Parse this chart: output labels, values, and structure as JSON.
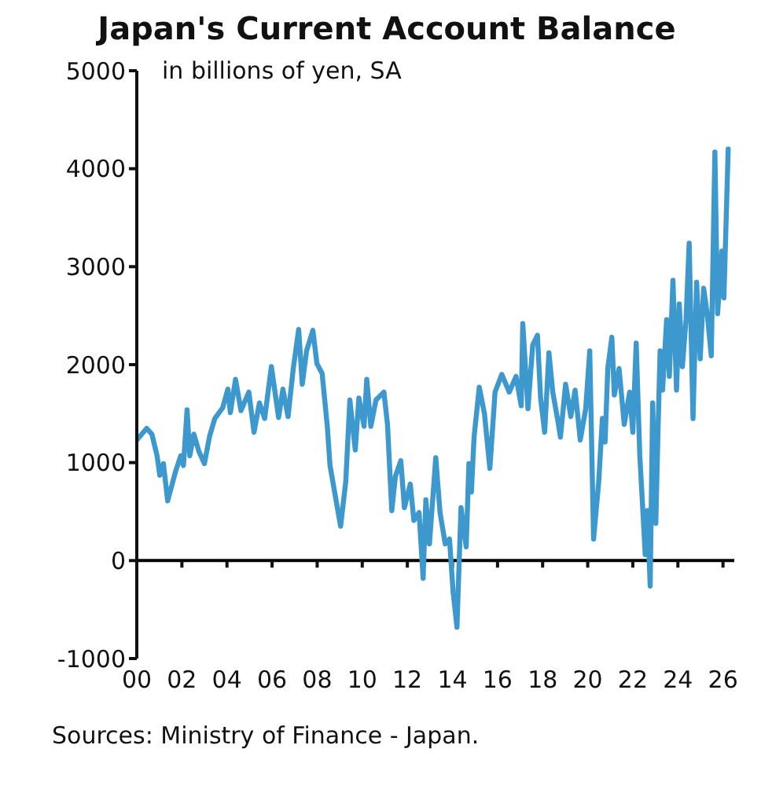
{
  "chart_data": {
    "type": "line",
    "title": "Japan's Current Account Balance",
    "ylabel": "in billions of yen, SA",
    "annotations": [
      "Sources: Ministry of Finance - Japan."
    ],
    "xlim": [
      2000,
      2026.5
    ],
    "xticks": [
      {
        "value": 2000,
        "label": "00"
      },
      {
        "value": 2002,
        "label": "02"
      },
      {
        "value": 2004,
        "label": "04"
      },
      {
        "value": 2006,
        "label": "06"
      },
      {
        "value": 2008,
        "label": "08"
      },
      {
        "value": 2010,
        "label": "10"
      },
      {
        "value": 2012,
        "label": "12"
      },
      {
        "value": 2014,
        "label": "14"
      },
      {
        "value": 2016,
        "label": "16"
      },
      {
        "value": 2018,
        "label": "18"
      },
      {
        "value": 2020,
        "label": "20"
      },
      {
        "value": 2022,
        "label": "22"
      },
      {
        "value": 2024,
        "label": "24"
      },
      {
        "value": 2026,
        "label": "26"
      }
    ],
    "ylim": [
      -1000,
      5000
    ],
    "yticks": [
      -1000,
      0,
      1000,
      2000,
      3000,
      4000,
      5000
    ],
    "ref_lines": [
      {
        "axis": "y",
        "value": 0,
        "color": "#000000"
      }
    ],
    "grid": false,
    "legend": false,
    "marker": "none",
    "line_style": "solid",
    "series": [
      {
        "color": "#3d99cd",
        "x": [
          2000.0,
          2000.44,
          2000.67,
          2000.9,
          2001.02,
          2001.18,
          2001.37,
          2001.72,
          2001.95,
          2002.07,
          2002.23,
          2002.35,
          2002.53,
          2002.76,
          2003.0,
          2003.23,
          2003.46,
          2003.81,
          2004.04,
          2004.15,
          2004.38,
          2004.62,
          2004.97,
          2005.2,
          2005.44,
          2005.67,
          2005.97,
          2006.29,
          2006.48,
          2006.71,
          2006.94,
          2007.18,
          2007.34,
          2007.53,
          2007.81,
          2007.99,
          2008.22,
          2008.45,
          2008.57,
          2009.04,
          2009.27,
          2009.45,
          2009.69,
          2009.85,
          2010.08,
          2010.2,
          2010.38,
          2010.61,
          2010.96,
          2011.12,
          2011.31,
          2011.47,
          2011.71,
          2011.87,
          2012.13,
          2012.29,
          2012.52,
          2012.7,
          2012.82,
          2012.98,
          2013.26,
          2013.45,
          2013.68,
          2013.87,
          2014.03,
          2014.2,
          2014.38,
          2014.61,
          2014.73,
          2014.84,
          2014.96,
          2015.19,
          2015.42,
          2015.66,
          2015.89,
          2016.19,
          2016.52,
          2016.82,
          2017.05,
          2017.12,
          2017.35,
          2017.56,
          2017.77,
          2017.91,
          2018.09,
          2018.28,
          2018.45,
          2018.68,
          2018.79,
          2019.02,
          2019.25,
          2019.44,
          2019.67,
          2019.91,
          2020.09,
          2020.26,
          2020.49,
          2020.65,
          2020.77,
          2020.89,
          2021.07,
          2021.18,
          2021.39,
          2021.62,
          2021.86,
          2022.0,
          2022.15,
          2022.31,
          2022.45,
          2022.55,
          2022.65,
          2022.77,
          2022.88,
          2023.02,
          2023.12,
          2023.21,
          2023.32,
          2023.5,
          2023.62,
          2023.78,
          2023.94,
          2024.06,
          2024.2,
          2024.36,
          2024.5,
          2024.67,
          2024.83,
          2024.99,
          2025.14,
          2025.3,
          2025.48,
          2025.64,
          2025.76,
          2025.95,
          2026.04,
          2026.23
        ],
        "values": [
          1230,
          1350,
          1290,
          1070,
          870,
          990,
          610,
          910,
          1070,
          970,
          1540,
          1070,
          1290,
          1110,
          990,
          1270,
          1450,
          1560,
          1750,
          1510,
          1850,
          1530,
          1720,
          1310,
          1610,
          1450,
          1980,
          1460,
          1750,
          1470,
          1960,
          2360,
          1800,
          2140,
          2350,
          2010,
          1910,
          1370,
          970,
          350,
          810,
          1640,
          1130,
          1660,
          1370,
          1850,
          1370,
          1640,
          1720,
          1390,
          510,
          860,
          1020,
          540,
          780,
          410,
          490,
          -180,
          620,
          170,
          1050,
          490,
          170,
          220,
          -320,
          -680,
          540,
          140,
          990,
          700,
          1260,
          1770,
          1500,
          940,
          1720,
          1900,
          1720,
          1880,
          1580,
          2420,
          1550,
          2200,
          2300,
          1660,
          1310,
          2120,
          1720,
          1420,
          1260,
          1800,
          1470,
          1740,
          1230,
          1550,
          2140,
          220,
          810,
          1450,
          1210,
          1960,
          2280,
          1690,
          1960,
          1390,
          1720,
          1310,
          2220,
          1070,
          490,
          60,
          510,
          -260,
          1610,
          380,
          1340,
          2140,
          1740,
          2460,
          1880,
          2860,
          1740,
          2620,
          1980,
          2460,
          3240,
          1450,
          2840,
          2060,
          2780,
          2520,
          2090,
          4170,
          2520,
          3160,
          2680,
          4200
        ]
      }
    ]
  }
}
